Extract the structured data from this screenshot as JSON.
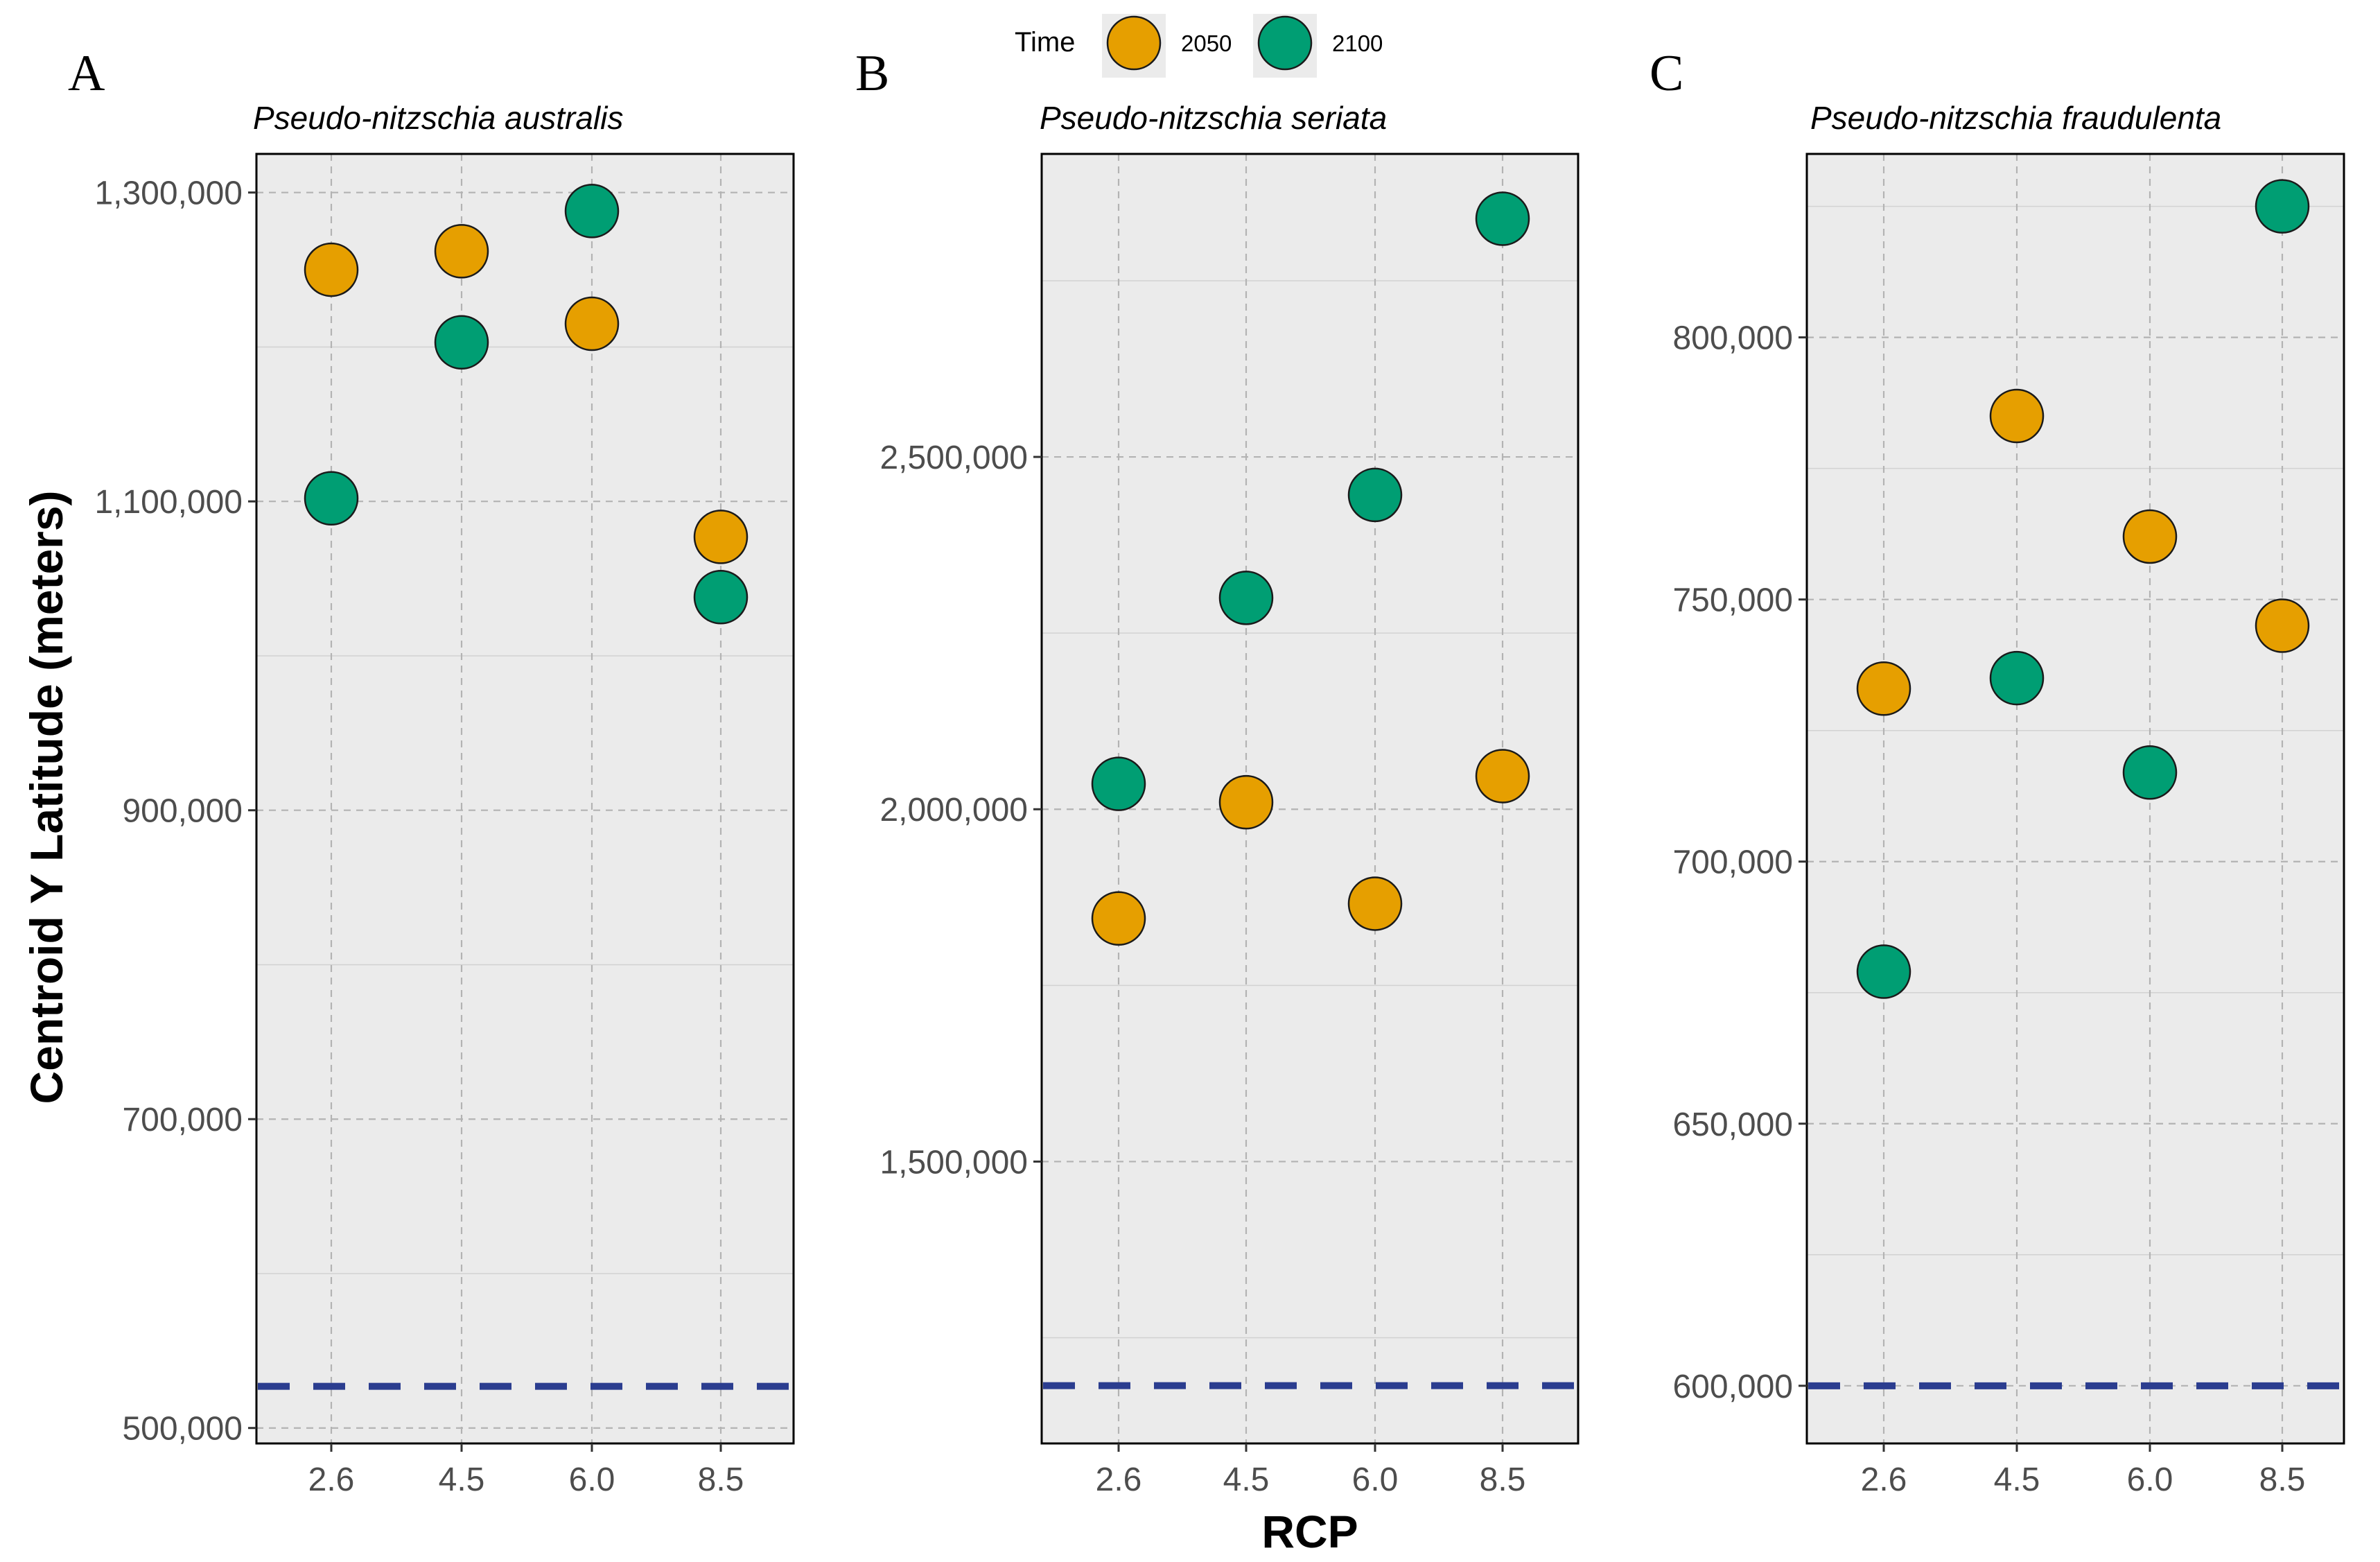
{
  "chart_data": [
    {
      "type": "scatter",
      "panel_letter": "A",
      "title": "Pseudo-nitzschia australis",
      "xlabel": "",
      "ylabel": "Centroid Y Latitude (meters)",
      "categories": [
        "2.6",
        "4.5",
        "6.0",
        "8.5"
      ],
      "ylim": [
        490000,
        1325000
      ],
      "yticks": [
        500000,
        700000,
        900000,
        1100000,
        1300000
      ],
      "ytick_labels": [
        "500,000",
        "700,000",
        "900,000",
        "1,100,000",
        "1,300,000"
      ],
      "baseline": 527000,
      "series": [
        {
          "name": "2050",
          "values": [
            1250000,
            1262000,
            1215000,
            1077000
          ]
        },
        {
          "name": "2100",
          "values": [
            1102000,
            1203000,
            1288000,
            1038000
          ]
        }
      ]
    },
    {
      "type": "scatter",
      "panel_letter": "B",
      "title": "Pseudo-nitzschia seriata",
      "xlabel": "RCP",
      "ylabel": "",
      "categories": [
        "2.6",
        "4.5",
        "6.0",
        "8.5"
      ],
      "ylim": [
        1100000,
        2930000
      ],
      "yticks": [
        1500000,
        2000000,
        2500000
      ],
      "ytick_labels": [
        "1,500,000",
        "2,000,000",
        "2,500,000"
      ],
      "baseline": 1182000,
      "series": [
        {
          "name": "2050",
          "values": [
            1845000,
            2010000,
            1866000,
            2047000
          ]
        },
        {
          "name": "2100",
          "values": [
            2036000,
            2300000,
            2446000,
            2838000
          ]
        }
      ]
    },
    {
      "type": "scatter",
      "panel_letter": "C",
      "title": "Pseudo-nitzschia fraudulenta",
      "xlabel": "",
      "ylabel": "",
      "categories": [
        "2.6",
        "4.5",
        "6.0",
        "8.5"
      ],
      "ylim": [
        589000,
        835000
      ],
      "yticks": [
        600000,
        650000,
        700000,
        750000,
        800000
      ],
      "ytick_labels": [
        "600,000",
        "650,000",
        "700,000",
        "750,000",
        "800,000"
      ],
      "baseline": 600000,
      "series": [
        {
          "name": "2050",
          "values": [
            733000,
            785000,
            762000,
            745000
          ]
        },
        {
          "name": "2100",
          "values": [
            679000,
            735000,
            717000,
            825000
          ]
        }
      ]
    }
  ],
  "legend": {
    "title": "Time",
    "items": [
      {
        "label": "2050",
        "color": "#E69F00"
      },
      {
        "label": "2100",
        "color": "#009E73"
      }
    ]
  },
  "colors": {
    "2050": "#E69F00",
    "2100": "#009E73",
    "baseline": "#2B3D8F",
    "panel_background": "#EBEBEB"
  }
}
